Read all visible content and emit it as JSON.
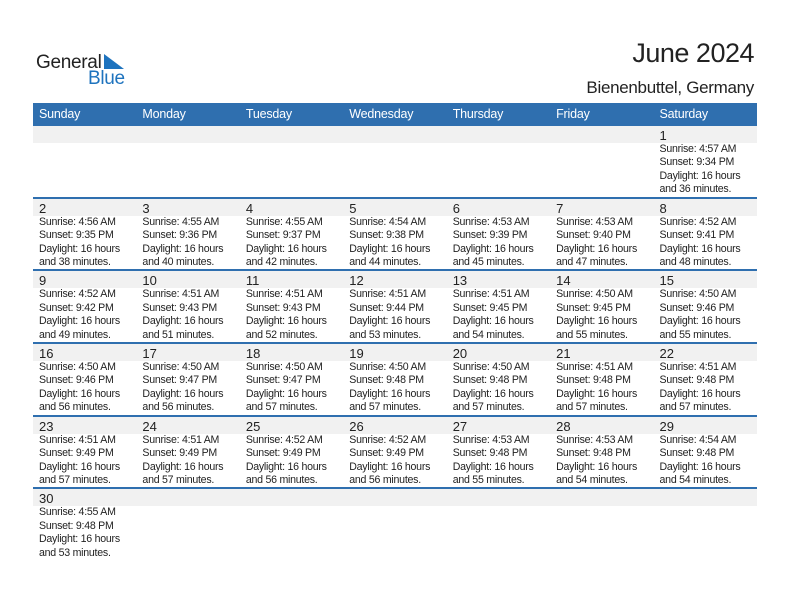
{
  "logo": {
    "word1": "General",
    "word2": "Blue",
    "color": "#1e73be"
  },
  "title": "June 2024",
  "location": "Bienenbuttel, Germany",
  "header_color": "#2f6faf",
  "weekdays": [
    "Sunday",
    "Monday",
    "Tuesday",
    "Wednesday",
    "Thursday",
    "Friday",
    "Saturday"
  ],
  "weeks": [
    [
      null,
      null,
      null,
      null,
      null,
      null,
      {
        "day": "1",
        "sunrise": "Sunrise: 4:57 AM",
        "sunset": "Sunset: 9:34 PM",
        "daylight": "Daylight: 16 hours",
        "daylight_rest": "and 36 minutes."
      }
    ],
    [
      {
        "day": "2",
        "sunrise": "Sunrise: 4:56 AM",
        "sunset": "Sunset: 9:35 PM",
        "daylight": "Daylight: 16 hours",
        "daylight_rest": "and 38 minutes."
      },
      {
        "day": "3",
        "sunrise": "Sunrise: 4:55 AM",
        "sunset": "Sunset: 9:36 PM",
        "daylight": "Daylight: 16 hours",
        "daylight_rest": "and 40 minutes."
      },
      {
        "day": "4",
        "sunrise": "Sunrise: 4:55 AM",
        "sunset": "Sunset: 9:37 PM",
        "daylight": "Daylight: 16 hours",
        "daylight_rest": "and 42 minutes."
      },
      {
        "day": "5",
        "sunrise": "Sunrise: 4:54 AM",
        "sunset": "Sunset: 9:38 PM",
        "daylight": "Daylight: 16 hours",
        "daylight_rest": "and 44 minutes."
      },
      {
        "day": "6",
        "sunrise": "Sunrise: 4:53 AM",
        "sunset": "Sunset: 9:39 PM",
        "daylight": "Daylight: 16 hours",
        "daylight_rest": "and 45 minutes."
      },
      {
        "day": "7",
        "sunrise": "Sunrise: 4:53 AM",
        "sunset": "Sunset: 9:40 PM",
        "daylight": "Daylight: 16 hours",
        "daylight_rest": "and 47 minutes."
      },
      {
        "day": "8",
        "sunrise": "Sunrise: 4:52 AM",
        "sunset": "Sunset: 9:41 PM",
        "daylight": "Daylight: 16 hours",
        "daylight_rest": "and 48 minutes."
      }
    ],
    [
      {
        "day": "9",
        "sunrise": "Sunrise: 4:52 AM",
        "sunset": "Sunset: 9:42 PM",
        "daylight": "Daylight: 16 hours",
        "daylight_rest": "and 49 minutes."
      },
      {
        "day": "10",
        "sunrise": "Sunrise: 4:51 AM",
        "sunset": "Sunset: 9:43 PM",
        "daylight": "Daylight: 16 hours",
        "daylight_rest": "and 51 minutes."
      },
      {
        "day": "11",
        "sunrise": "Sunrise: 4:51 AM",
        "sunset": "Sunset: 9:43 PM",
        "daylight": "Daylight: 16 hours",
        "daylight_rest": "and 52 minutes."
      },
      {
        "day": "12",
        "sunrise": "Sunrise: 4:51 AM",
        "sunset": "Sunset: 9:44 PM",
        "daylight": "Daylight: 16 hours",
        "daylight_rest": "and 53 minutes."
      },
      {
        "day": "13",
        "sunrise": "Sunrise: 4:51 AM",
        "sunset": "Sunset: 9:45 PM",
        "daylight": "Daylight: 16 hours",
        "daylight_rest": "and 54 minutes."
      },
      {
        "day": "14",
        "sunrise": "Sunrise: 4:50 AM",
        "sunset": "Sunset: 9:45 PM",
        "daylight": "Daylight: 16 hours",
        "daylight_rest": "and 55 minutes."
      },
      {
        "day": "15",
        "sunrise": "Sunrise: 4:50 AM",
        "sunset": "Sunset: 9:46 PM",
        "daylight": "Daylight: 16 hours",
        "daylight_rest": "and 55 minutes."
      }
    ],
    [
      {
        "day": "16",
        "sunrise": "Sunrise: 4:50 AM",
        "sunset": "Sunset: 9:46 PM",
        "daylight": "Daylight: 16 hours",
        "daylight_rest": "and 56 minutes."
      },
      {
        "day": "17",
        "sunrise": "Sunrise: 4:50 AM",
        "sunset": "Sunset: 9:47 PM",
        "daylight": "Daylight: 16 hours",
        "daylight_rest": "and 56 minutes."
      },
      {
        "day": "18",
        "sunrise": "Sunrise: 4:50 AM",
        "sunset": "Sunset: 9:47 PM",
        "daylight": "Daylight: 16 hours",
        "daylight_rest": "and 57 minutes."
      },
      {
        "day": "19",
        "sunrise": "Sunrise: 4:50 AM",
        "sunset": "Sunset: 9:48 PM",
        "daylight": "Daylight: 16 hours",
        "daylight_rest": "and 57 minutes."
      },
      {
        "day": "20",
        "sunrise": "Sunrise: 4:50 AM",
        "sunset": "Sunset: 9:48 PM",
        "daylight": "Daylight: 16 hours",
        "daylight_rest": "and 57 minutes."
      },
      {
        "day": "21",
        "sunrise": "Sunrise: 4:51 AM",
        "sunset": "Sunset: 9:48 PM",
        "daylight": "Daylight: 16 hours",
        "daylight_rest": "and 57 minutes."
      },
      {
        "day": "22",
        "sunrise": "Sunrise: 4:51 AM",
        "sunset": "Sunset: 9:48 PM",
        "daylight": "Daylight: 16 hours",
        "daylight_rest": "and 57 minutes."
      }
    ],
    [
      {
        "day": "23",
        "sunrise": "Sunrise: 4:51 AM",
        "sunset": "Sunset: 9:49 PM",
        "daylight": "Daylight: 16 hours",
        "daylight_rest": "and 57 minutes."
      },
      {
        "day": "24",
        "sunrise": "Sunrise: 4:51 AM",
        "sunset": "Sunset: 9:49 PM",
        "daylight": "Daylight: 16 hours",
        "daylight_rest": "and 57 minutes."
      },
      {
        "day": "25",
        "sunrise": "Sunrise: 4:52 AM",
        "sunset": "Sunset: 9:49 PM",
        "daylight": "Daylight: 16 hours",
        "daylight_rest": "and 56 minutes."
      },
      {
        "day": "26",
        "sunrise": "Sunrise: 4:52 AM",
        "sunset": "Sunset: 9:49 PM",
        "daylight": "Daylight: 16 hours",
        "daylight_rest": "and 56 minutes."
      },
      {
        "day": "27",
        "sunrise": "Sunrise: 4:53 AM",
        "sunset": "Sunset: 9:48 PM",
        "daylight": "Daylight: 16 hours",
        "daylight_rest": "and 55 minutes."
      },
      {
        "day": "28",
        "sunrise": "Sunrise: 4:53 AM",
        "sunset": "Sunset: 9:48 PM",
        "daylight": "Daylight: 16 hours",
        "daylight_rest": "and 54 minutes."
      },
      {
        "day": "29",
        "sunrise": "Sunrise: 4:54 AM",
        "sunset": "Sunset: 9:48 PM",
        "daylight": "Daylight: 16 hours",
        "daylight_rest": "and 54 minutes."
      }
    ],
    [
      {
        "day": "30",
        "sunrise": "Sunrise: 4:55 AM",
        "sunset": "Sunset: 9:48 PM",
        "daylight": "Daylight: 16 hours",
        "daylight_rest": "and 53 minutes."
      },
      null,
      null,
      null,
      null,
      null,
      null
    ]
  ]
}
